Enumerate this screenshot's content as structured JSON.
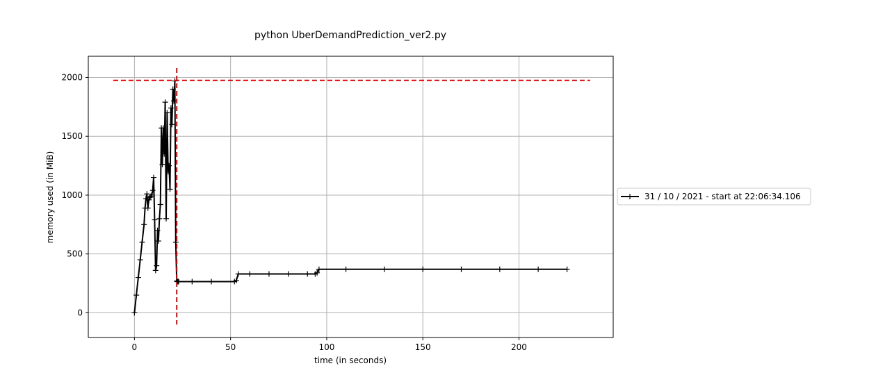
{
  "chart_data": {
    "type": "line",
    "title": "python UberDemandPrediction_ver2.py",
    "xlabel": "time (in seconds)",
    "ylabel": "memory used (in MiB)",
    "xlim": [
      -24,
      249
    ],
    "ylim": [
      -210,
      2180
    ],
    "xticks": [
      0,
      50,
      100,
      150,
      200
    ],
    "yticks": [
      0,
      500,
      1000,
      1500,
      2000
    ],
    "xtick_labels": [
      "0",
      "50",
      "100",
      "150",
      "200"
    ],
    "ytick_labels": [
      "0",
      "500",
      "1000",
      "1500",
      "2000"
    ],
    "grid": true,
    "legend": {
      "placement": "outside-right",
      "entries": [
        "31 / 10 / 2021 - start at 22:06:34.106"
      ]
    },
    "colors": {
      "series": "#000000",
      "peak_lines": "#e00000",
      "grid": "#b0b0b0"
    },
    "series": [
      {
        "name": "31 / 10 / 2021 - start at 22:06:34.106",
        "marker": "+",
        "x": [
          0,
          1,
          2,
          3,
          4,
          5,
          5.5,
          6,
          6.5,
          7,
          7.5,
          8,
          8.5,
          9,
          9.5,
          10,
          10.5,
          11,
          11.5,
          12,
          12.5,
          13,
          13.5,
          14,
          14.5,
          15,
          15.5,
          16,
          16.5,
          17,
          17.5,
          18,
          18.5,
          19,
          19.5,
          20,
          20.5,
          21,
          21.5,
          22,
          22.3,
          22.6,
          23,
          30,
          40,
          52,
          53,
          54,
          60,
          70,
          80,
          90,
          94,
          95,
          96,
          110,
          130,
          150,
          170,
          190,
          210,
          225
        ],
        "y": [
          0,
          150,
          300,
          450,
          600,
          750,
          890,
          970,
          1010,
          890,
          960,
          980,
          990,
          1000,
          1040,
          1150,
          790,
          360,
          400,
          700,
          610,
          800,
          920,
          1570,
          1260,
          1570,
          1350,
          1790,
          800,
          1700,
          1200,
          1250,
          1050,
          1740,
          1600,
          1900,
          1800,
          1970,
          600,
          270,
          265,
          265,
          265,
          265,
          265,
          265,
          275,
          330,
          330,
          330,
          330,
          330,
          330,
          340,
          370,
          370,
          370,
          370,
          370,
          370,
          370,
          370
        ]
      }
    ],
    "annotations": {
      "peak_memory_hline_y": 1975,
      "hline_x_range": [
        -11,
        237
      ],
      "peak_time_vline_x": 22,
      "vline_y_range": [
        -100,
        2080
      ]
    }
  }
}
